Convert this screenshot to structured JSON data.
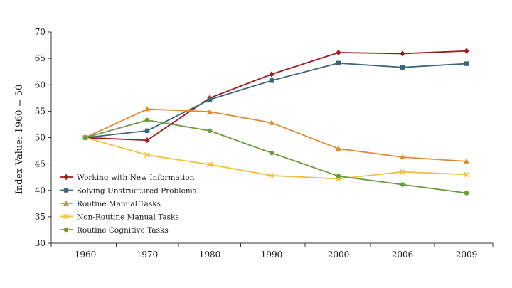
{
  "chart_data": {
    "type": "line",
    "title": "",
    "xlabel": "",
    "ylabel": "Index Value: 1960 = 50",
    "categories": [
      "1960",
      "1970",
      "1980",
      "1990",
      "2000",
      "2006",
      "2009"
    ],
    "ylim": [
      30,
      70
    ],
    "yticks": [
      30,
      35,
      40,
      45,
      50,
      55,
      60,
      65,
      70
    ],
    "grid": false,
    "legend_position": "bottom-left",
    "series": [
      {
        "name": "Working with New Information",
        "color": "#9e1b1b",
        "marker": "diamond",
        "values": [
          50,
          49.5,
          57.5,
          62,
          66.1,
          65.9,
          66.4
        ]
      },
      {
        "name": "Solving Unstructured Problems",
        "color": "#3d6478",
        "marker": "square",
        "values": [
          50,
          51.3,
          57.2,
          60.8,
          64.1,
          63.3,
          64.0
        ]
      },
      {
        "name": "Routine Manual Tasks",
        "color": "#e08a35",
        "marker": "triangle",
        "values": [
          50,
          55.4,
          54.9,
          52.8,
          47.9,
          46.3,
          45.5
        ]
      },
      {
        "name": "Non-Routine Manual Tasks",
        "color": "#f0c040",
        "marker": "x",
        "values": [
          50,
          46.7,
          44.9,
          42.8,
          42.2,
          43.5,
          43.0
        ]
      },
      {
        "name": "Routine Cognitive Tasks",
        "color": "#6e9a3e",
        "marker": "circle",
        "values": [
          50,
          53.3,
          51.3,
          47.1,
          42.7,
          41.1,
          39.5
        ]
      }
    ]
  }
}
